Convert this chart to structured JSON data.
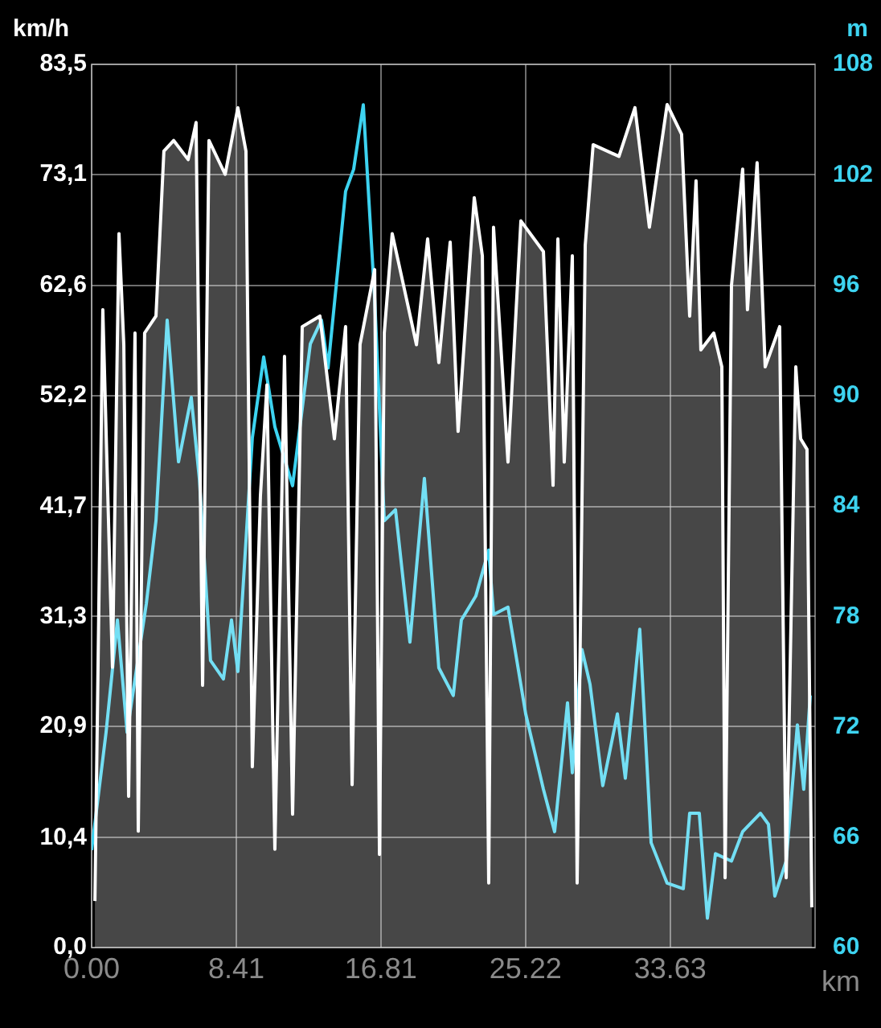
{
  "chart_data": {
    "type": "line",
    "ylabel": "km/h",
    "y2label": "m",
    "xlabel": "km",
    "xlim": [
      0,
      42.05
    ],
    "xticks": [
      {
        "value": 0,
        "label": "0.00"
      },
      8.41,
      16.81,
      25.22,
      33.63
    ],
    "ylim": [
      0,
      83.5
    ],
    "yticks": [
      {
        "value": 0,
        "label": "0,0"
      },
      {
        "value": 10.4,
        "label": "10,4"
      },
      {
        "value": 20.9,
        "label": "20,9"
      },
      {
        "value": 31.3,
        "label": "31,3"
      },
      {
        "value": 41.7,
        "label": "41,7"
      },
      {
        "value": 52.2,
        "label": "52,2"
      },
      {
        "value": 62.6,
        "label": "62,6"
      },
      {
        "value": 73.1,
        "label": "73,1"
      },
      {
        "value": 83.5,
        "label": "83,5"
      }
    ],
    "y2lim": [
      60,
      108
    ],
    "y2ticks": [
      60,
      66,
      72,
      78,
      84,
      90,
      96,
      102,
      108
    ],
    "grid": true,
    "series": [
      {
        "type": "area",
        "color": "#ffffff",
        "x": [
          0.19,
          0.65,
          1.21,
          1.59,
          1.87,
          2.15,
          2.52,
          2.71,
          3.08,
          3.74,
          4.2,
          4.77,
          5.61,
          6.07,
          6.45,
          6.82,
          7.76,
          8.5,
          8.97,
          9.34,
          9.81,
          10.19,
          10.65,
          11.21,
          11.68,
          12.24,
          13.27,
          14.11,
          14.76,
          15.14,
          15.6,
          16.45,
          16.73,
          17.01,
          17.47,
          18.13,
          18.88,
          19.53,
          20.18,
          20.84,
          21.3,
          22.24,
          22.71,
          23.08,
          23.36,
          24.2,
          24.95,
          26.26,
          26.82,
          27.1,
          27.47,
          27.94,
          28.22,
          28.69,
          29.15,
          30.65,
          31.58,
          32.42,
          33.45,
          34.29,
          34.76,
          35.13,
          35.41,
          36.16,
          36.63,
          36.82,
          37.19,
          37.84,
          38.12,
          38.68,
          39.15,
          39.99,
          40.37,
          40.93,
          41.21,
          41.58,
          41.86
        ],
        "values": [
          4.4,
          60.3,
          26.5,
          67.5,
          57.0,
          14.3,
          58.1,
          11.0,
          58.1,
          59.7,
          75.3,
          76.3,
          74.5,
          78.0,
          24.8,
          76.3,
          73.1,
          79.4,
          75.3,
          17.1,
          42.7,
          53.2,
          9.3,
          55.9,
          12.6,
          58.7,
          59.7,
          48.1,
          58.7,
          15.4,
          57.0,
          64.1,
          8.8,
          58.1,
          67.5,
          62.6,
          57.0,
          67.0,
          55.3,
          66.7,
          48.8,
          70.9,
          65.4,
          6.1,
          68.1,
          45.9,
          68.7,
          65.8,
          43.7,
          67.0,
          45.9,
          65.4,
          6.1,
          66.4,
          75.9,
          74.8,
          79.4,
          68.1,
          79.7,
          76.9,
          59.7,
          72.5,
          56.5,
          58.1,
          54.9,
          6.6,
          62.6,
          73.6,
          60.3,
          74.2,
          54.9,
          58.7,
          6.6,
          54.9,
          48.1,
          47.1,
          3.8
        ]
      },
      {
        "axis": "y2",
        "color": "#3dd3f0",
        "x": [
          0.0,
          0.84,
          1.5,
          2.06,
          3.18,
          3.74,
          4.39,
          5.05,
          5.79,
          6.26,
          6.91,
          7.66,
          8.13,
          8.5,
          9.34,
          10.0,
          10.65,
          11.68,
          12.71,
          13.36,
          13.74,
          14.76,
          15.23,
          15.79,
          16.45,
          17.01,
          17.66,
          18.5,
          19.34,
          20.18,
          21.02,
          21.49,
          22.33,
          23.08,
          23.36,
          24.2,
          25.23,
          26.26,
          26.91,
          27.66,
          27.94,
          28.5,
          28.97,
          29.71,
          30.56,
          31.02,
          31.86,
          32.52,
          33.45,
          34.39,
          34.76,
          35.32,
          35.79,
          36.26,
          37.19,
          37.84,
          38.87,
          39.34,
          39.71,
          40.37,
          41.02,
          41.39,
          41.77
        ],
        "values": [
          65.3,
          71.7,
          77.8,
          71.7,
          78.7,
          83.2,
          94.1,
          86.4,
          89.9,
          85.5,
          75.6,
          74.6,
          77.8,
          75.0,
          87.7,
          92.1,
          88.3,
          85.1,
          92.8,
          94.1,
          91.5,
          101.1,
          102.3,
          105.8,
          95.3,
          83.2,
          83.8,
          76.6,
          85.5,
          75.2,
          73.7,
          77.8,
          79.1,
          81.6,
          78.1,
          78.5,
          72.7,
          68.6,
          66.3,
          73.3,
          69.5,
          76.2,
          74.3,
          68.8,
          72.7,
          69.2,
          77.3,
          65.7,
          63.5,
          63.2,
          67.3,
          67.3,
          61.6,
          65.1,
          64.7,
          66.3,
          67.3,
          66.7,
          62.8,
          64.7,
          72.1,
          68.6,
          73.7
        ]
      }
    ]
  }
}
